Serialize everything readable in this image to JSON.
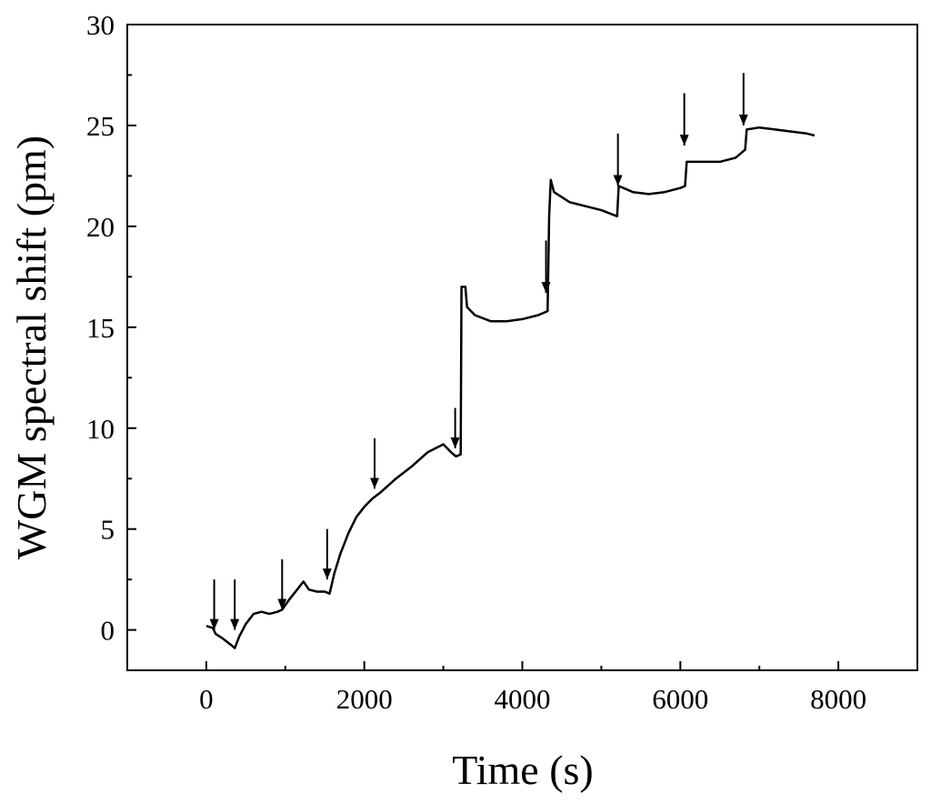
{
  "chart_data": {
    "type": "line",
    "xlabel": "Time (s)",
    "ylabel": "WGM spectral shift (pm)",
    "xlim": [
      -1000,
      9000
    ],
    "ylim": [
      -2,
      30
    ],
    "xticks": [
      0,
      2000,
      4000,
      6000,
      8000
    ],
    "yticks": [
      0,
      5,
      10,
      15,
      20,
      25,
      30
    ],
    "grid": false,
    "legend": "none",
    "line_color": "#000000",
    "series": [
      {
        "points": [
          [
            0,
            0.2
          ],
          [
            80,
            0.1
          ],
          [
            120,
            -0.2
          ],
          [
            200,
            -0.4
          ],
          [
            300,
            -0.7
          ],
          [
            360,
            -0.9
          ],
          [
            420,
            -0.3
          ],
          [
            500,
            0.3
          ],
          [
            600,
            0.8
          ],
          [
            700,
            0.9
          ],
          [
            800,
            0.8
          ],
          [
            900,
            0.9
          ],
          [
            960,
            1.0
          ],
          [
            1050,
            1.5
          ],
          [
            1150,
            2.0
          ],
          [
            1230,
            2.4
          ],
          [
            1300,
            2.0
          ],
          [
            1400,
            1.9
          ],
          [
            1500,
            1.9
          ],
          [
            1560,
            1.8
          ],
          [
            1620,
            2.8
          ],
          [
            1700,
            3.8
          ],
          [
            1800,
            4.8
          ],
          [
            1900,
            5.6
          ],
          [
            2000,
            6.1
          ],
          [
            2100,
            6.5
          ],
          [
            2200,
            6.8
          ],
          [
            2400,
            7.5
          ],
          [
            2600,
            8.1
          ],
          [
            2800,
            8.8
          ],
          [
            3000,
            9.2
          ],
          [
            3100,
            8.8
          ],
          [
            3160,
            8.6
          ],
          [
            3220,
            8.7
          ],
          [
            3230,
            17.0
          ],
          [
            3280,
            17.0
          ],
          [
            3300,
            16.0
          ],
          [
            3400,
            15.6
          ],
          [
            3600,
            15.3
          ],
          [
            3800,
            15.3
          ],
          [
            4000,
            15.4
          ],
          [
            4200,
            15.6
          ],
          [
            4320,
            15.8
          ],
          [
            4340,
            20.5
          ],
          [
            4360,
            22.3
          ],
          [
            4400,
            21.7
          ],
          [
            4600,
            21.2
          ],
          [
            4800,
            21.0
          ],
          [
            5000,
            20.8
          ],
          [
            5200,
            20.5
          ],
          [
            5220,
            22.0
          ],
          [
            5400,
            21.7
          ],
          [
            5600,
            21.6
          ],
          [
            5800,
            21.7
          ],
          [
            6000,
            21.9
          ],
          [
            6060,
            22.0
          ],
          [
            6080,
            23.2
          ],
          [
            6300,
            23.2
          ],
          [
            6500,
            23.2
          ],
          [
            6700,
            23.4
          ],
          [
            6820,
            23.8
          ],
          [
            6840,
            24.8
          ],
          [
            7000,
            24.9
          ],
          [
            7200,
            24.8
          ],
          [
            7400,
            24.7
          ],
          [
            7600,
            24.6
          ],
          [
            7700,
            24.5
          ]
        ]
      }
    ],
    "annotations": [
      {
        "type": "arrow",
        "x": 100,
        "y_top": 2.5,
        "y_tip": 0.0
      },
      {
        "type": "arrow",
        "x": 360,
        "y_top": 2.5,
        "y_tip": 0.0
      },
      {
        "type": "arrow",
        "x": 960,
        "y_top": 3.5,
        "y_tip": 1.0
      },
      {
        "type": "arrow",
        "x": 1530,
        "y_top": 5.0,
        "y_tip": 2.5
      },
      {
        "type": "arrow",
        "x": 2130,
        "y_top": 9.5,
        "y_tip": 7.0
      },
      {
        "type": "arrow",
        "x": 3150,
        "y_top": 11.0,
        "y_tip": 9.0
      },
      {
        "type": "arrow",
        "x": 4300,
        "y_top": 19.3,
        "y_tip": 16.7
      },
      {
        "type": "arrow",
        "x": 5210,
        "y_top": 24.6,
        "y_tip": 22.0
      },
      {
        "type": "arrow",
        "x": 6050,
        "y_top": 26.6,
        "y_tip": 24.0
      },
      {
        "type": "arrow",
        "x": 6800,
        "y_top": 27.6,
        "y_tip": 25.0
      }
    ]
  }
}
